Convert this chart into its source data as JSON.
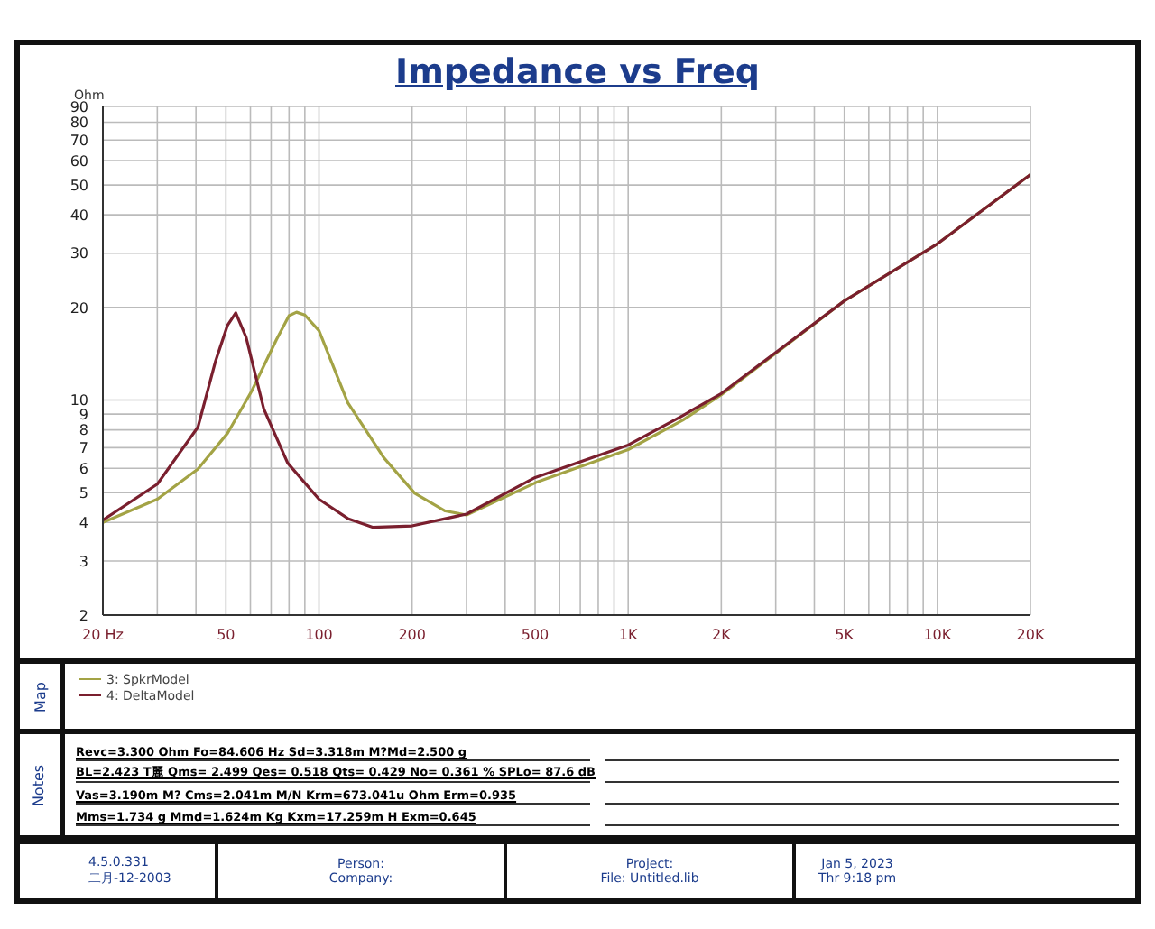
{
  "chart_data": {
    "type": "line",
    "title": "Impedance vs Freq",
    "ylabel": "Ohm",
    "legend_title": "Map",
    "log": "xy",
    "grid": true,
    "legend": "bottom",
    "marker": "none",
    "line_style": "solid",
    "xlim": [
      20,
      20000
    ],
    "xticks": [
      {
        "value": 20,
        "label": "20  Hz"
      },
      {
        "value": 30,
        "label": null
      },
      {
        "value": 40,
        "label": null
      },
      50,
      {
        "value": 60,
        "label": null
      },
      {
        "value": 70,
        "label": null
      },
      {
        "value": 80,
        "label": null
      },
      {
        "value": 90,
        "label": null
      },
      100,
      200,
      {
        "value": 300,
        "label": null
      },
      {
        "value": 400,
        "label": null
      },
      500,
      {
        "value": 600,
        "label": null
      },
      {
        "value": 700,
        "label": null
      },
      {
        "value": 800,
        "label": null
      },
      {
        "value": 900,
        "label": null
      },
      {
        "value": 1000,
        "label": "1K"
      },
      {
        "value": 2000,
        "label": "2K"
      },
      {
        "value": 3000,
        "label": null
      },
      {
        "value": 4000,
        "label": null
      },
      {
        "value": 5000,
        "label": "5K"
      },
      {
        "value": 6000,
        "label": null
      },
      {
        "value": 7000,
        "label": null
      },
      {
        "value": 8000,
        "label": null
      },
      {
        "value": 9000,
        "label": null
      },
      {
        "value": 10000,
        "label": "10K"
      },
      {
        "value": 20000,
        "label": "20K"
      }
    ],
    "ylim": [
      2,
      90
    ],
    "yticks": [
      2,
      3,
      4,
      5,
      6,
      7,
      8,
      9,
      10,
      20,
      30,
      40,
      50,
      60,
      70,
      80,
      90
    ],
    "series": [
      {
        "name": "3: SpkrModel",
        "color": "#a3a345",
        "x": [
          20,
          30,
          40.6,
          50.6,
          60.6,
          72.8,
          80,
          84.6,
          90,
          100,
          124,
          162,
          204,
          256,
          300,
          504,
          1000,
          1500,
          2000,
          5000,
          10000,
          20000
        ],
        "values": [
          4.0,
          4.76,
          5.97,
          7.8,
          10.7,
          15.7,
          18.8,
          19.3,
          18.9,
          16.8,
          9.8,
          6.5,
          4.98,
          4.36,
          4.23,
          5.4,
          6.9,
          8.6,
          10.4,
          21.0,
          32.2,
          54.1
        ]
      },
      {
        "name": "4: DeltaModel",
        "color": "#7a1f2e",
        "x": [
          20,
          30,
          40.6,
          46.3,
          50.6,
          53.8,
          58.1,
          66.3,
          79.2,
          100,
          124,
          149,
          200,
          300,
          500,
          1000,
          1500,
          2000,
          5000,
          10000,
          20000
        ],
        "values": [
          4.07,
          5.33,
          8.17,
          13.4,
          17.5,
          19.2,
          16.0,
          9.36,
          6.24,
          4.76,
          4.12,
          3.86,
          3.9,
          4.26,
          5.6,
          7.14,
          8.9,
          10.5,
          21.0,
          32.2,
          54.1
        ]
      }
    ],
    "annotations": [
      "Notes",
      "Revc=3.300 Ohm  Fo=84.606 Hz  Sd=3.318m M?Md=2.500 g",
      "BL=2.423 T麗  Qms= 2.499  Qes= 0.518  Qts= 0.429  No= 0.361 %  SPLo= 87.6 dB",
      "Vas=3.190m M? Cms=2.041m M/N  Krm=673.041u Ohm  Erm=0.935",
      "Mms=1.734 g  Mmd=1.624m Kg  Kxm=17.259m H  Exm=0.645",
      "4.5.0.331",
      "二月-12-2003",
      "Person:",
      "Company:",
      "Project:",
      "File: Untitled.lib",
      "Jan  5, 2023",
      "Thr  9:18 pm"
    ]
  }
}
